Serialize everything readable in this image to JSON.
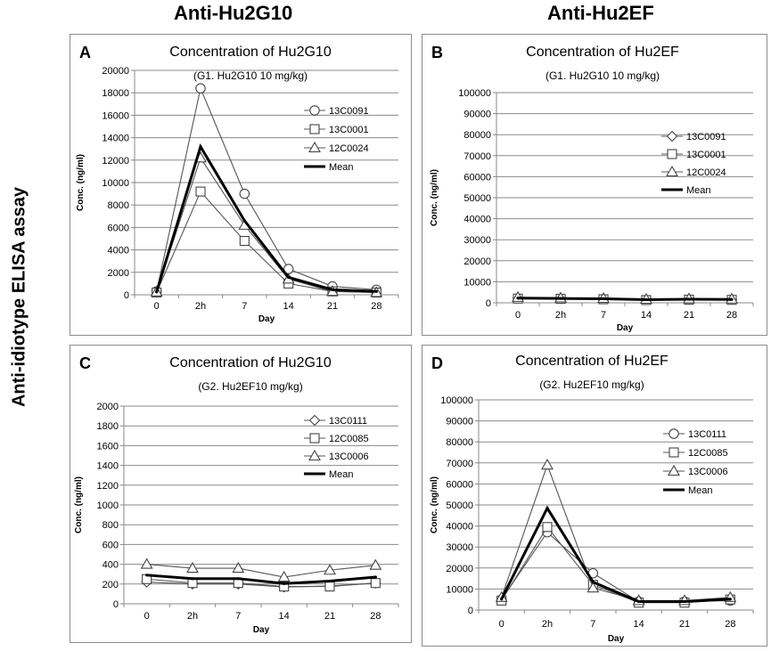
{
  "column_headers": [
    "Anti-Hu2G10",
    "Anti-Hu2EF"
  ],
  "side_label": "Anti-idiotype ELISA assay",
  "chart_data": [
    {
      "panel": "A",
      "type": "line",
      "title": "Concentration of Hu2G10",
      "subtitle": "(G1. Hu2G10 10 mg/kg)",
      "xlabel": "Day",
      "ylabel": "Conc.  (ng/ml)",
      "categories": [
        "0",
        "2h",
        "7",
        "14",
        "21",
        "28"
      ],
      "ylim": [
        0,
        20000
      ],
      "ystep": 2000,
      "series": [
        {
          "name": "13C0091",
          "marker": "circle",
          "values": [
            300,
            18400,
            9000,
            2300,
            750,
            450
          ]
        },
        {
          "name": "13C0001",
          "marker": "square",
          "values": [
            200,
            9200,
            4800,
            1000,
            300,
            200
          ]
        },
        {
          "name": "12C0024",
          "marker": "triangle",
          "values": [
            250,
            12200,
            6200,
            1400,
            300,
            200
          ]
        },
        {
          "name": "Mean",
          "marker": "none",
          "values": [
            250,
            13200,
            6600,
            1550,
            450,
            300
          ]
        }
      ]
    },
    {
      "panel": "B",
      "type": "line",
      "title": "Concentration of Hu2EF",
      "subtitle": "(G1. Hu2G10 10 mg/kg)",
      "xlabel": "Day",
      "ylabel": "Conc.  (ng/ml)",
      "categories": [
        "0",
        "2h",
        "7",
        "14",
        "21",
        "28"
      ],
      "ylim": [
        0,
        100000
      ],
      "ystep": 10000,
      "series": [
        {
          "name": "13C0091",
          "marker": "diamond",
          "values": [
            2200,
            2000,
            1900,
            1500,
            1700,
            1600
          ]
        },
        {
          "name": "13C0001",
          "marker": "square",
          "values": [
            2000,
            1900,
            1700,
            1300,
            1500,
            1400
          ]
        },
        {
          "name": "12C0024",
          "marker": "triangle",
          "values": [
            2600,
            2300,
            2100,
            1700,
            1900,
            1800
          ]
        },
        {
          "name": "Mean",
          "marker": "none",
          "values": [
            2250,
            2050,
            1900,
            1500,
            1700,
            1600
          ]
        }
      ]
    },
    {
      "panel": "C",
      "type": "line",
      "title": "Concentration of Hu2G10",
      "subtitle": "(G2. Hu2EF10 mg/kg)",
      "xlabel": "Day",
      "ylabel": "Conc.  (ng/ml)",
      "categories": [
        "0",
        "2h",
        "7",
        "14",
        "21",
        "28"
      ],
      "ylim": [
        0,
        2000
      ],
      "ystep": 200,
      "series": [
        {
          "name": "13C0111",
          "marker": "diamond",
          "values": [
            220,
            200,
            200,
            170,
            180,
            210
          ]
        },
        {
          "name": "12C0085",
          "marker": "square",
          "values": [
            250,
            210,
            210,
            175,
            175,
            210
          ]
        },
        {
          "name": "13C0006",
          "marker": "triangle",
          "values": [
            400,
            360,
            360,
            270,
            340,
            390
          ]
        },
        {
          "name": "Mean",
          "marker": "none",
          "values": [
            290,
            255,
            255,
            205,
            230,
            270
          ]
        }
      ]
    },
    {
      "panel": "D",
      "type": "line",
      "title": "Concentration of Hu2EF",
      "subtitle": "(G2. Hu2EF10 mg/kg)",
      "xlabel": "Day",
      "ylabel": "Conc.  (ng/ml)",
      "categories": [
        "0",
        "2h",
        "7",
        "14",
        "21",
        "28"
      ],
      "ylim": [
        0,
        100000
      ],
      "ystep": 10000,
      "series": [
        {
          "name": "13C0111",
          "marker": "circle",
          "values": [
            5000,
            37000,
            17500,
            4000,
            4000,
            4500
          ]
        },
        {
          "name": "12C0085",
          "marker": "square",
          "values": [
            4500,
            39500,
            12000,
            3500,
            3500,
            5000
          ]
        },
        {
          "name": "13C0006",
          "marker": "triangle",
          "values": [
            6000,
            69000,
            10500,
            4500,
            4500,
            6000
          ]
        },
        {
          "name": "Mean",
          "marker": "none",
          "values": [
            5200,
            48500,
            13300,
            4000,
            4000,
            5200
          ]
        }
      ]
    }
  ]
}
